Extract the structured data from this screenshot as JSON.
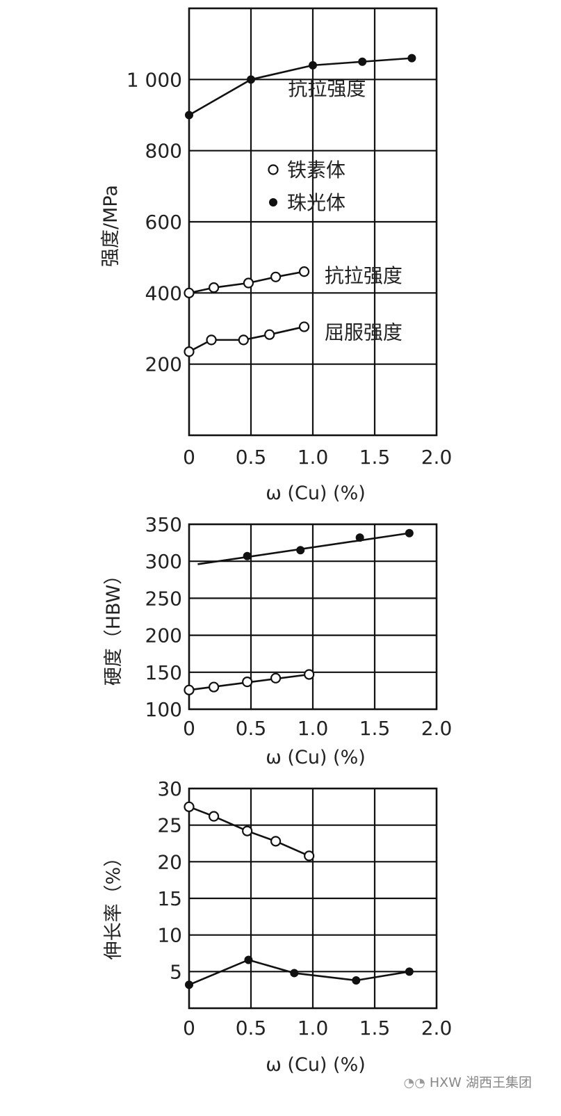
{
  "chart_data": [
    {
      "type": "line",
      "xlabel": "ω (Cu) (%)",
      "ylabel": "强度/MPa",
      "xlim": [
        0,
        2.0
      ],
      "ylim": [
        0,
        1200
      ],
      "x_ticks": [
        "0",
        "0.5",
        "1.0",
        "1.5",
        "2.0"
      ],
      "y_ticks": [
        {
          "value": 200,
          "label": "200"
        },
        {
          "value": 400,
          "label": "400"
        },
        {
          "value": 600,
          "label": "600"
        },
        {
          "value": 800,
          "label": "800"
        },
        {
          "value": 1000,
          "label": "1 000"
        }
      ],
      "grid": true,
      "legend": {
        "position": "center",
        "entries": [
          {
            "marker": "open-circle",
            "label": "铁素体"
          },
          {
            "marker": "filled-circle",
            "label": "珠光体"
          }
        ]
      },
      "series": [
        {
          "marker": "filled",
          "label": "抗拉强度",
          "x": [
            0,
            0.5,
            1.0,
            1.4,
            1.8
          ],
          "y": [
            900,
            1000,
            1040,
            1050,
            1060
          ]
        },
        {
          "marker": "open",
          "label": "抗拉强度",
          "x": [
            0,
            0.2,
            0.48,
            0.7,
            0.93
          ],
          "y": [
            400,
            415,
            428,
            445,
            460
          ]
        },
        {
          "marker": "open",
          "label": "屈服强度",
          "x": [
            0,
            0.18,
            0.44,
            0.65,
            0.93
          ],
          "y": [
            235,
            268,
            268,
            283,
            305
          ]
        }
      ]
    },
    {
      "type": "line",
      "xlabel": "ω (Cu) (%)",
      "ylabel": "硬度（HBW）",
      "xlim": [
        0,
        2.0
      ],
      "ylim": [
        100,
        350
      ],
      "x_ticks": [
        "0",
        "0.5",
        "1.0",
        "1.5",
        "2.0"
      ],
      "y_ticks": [
        "100",
        "150",
        "200",
        "250",
        "300",
        "350"
      ],
      "grid": true,
      "series": [
        {
          "marker": "filled",
          "x": [
            0.47,
            0.9,
            1.38,
            1.78
          ],
          "y": [
            307,
            315,
            332,
            338
          ],
          "trend": {
            "x": [
              0.07,
              1.78
            ],
            "y": [
              296,
              338
            ]
          }
        },
        {
          "marker": "open",
          "x": [
            0,
            0.2,
            0.47,
            0.7,
            0.97
          ],
          "y": [
            126,
            130,
            137,
            142,
            147
          ],
          "trend": {
            "x": [
              0,
              0.97
            ],
            "y": [
              126,
              147
            ]
          }
        }
      ]
    },
    {
      "type": "line",
      "xlabel": "ω (Cu) (%)",
      "ylabel": "伸长率（%）",
      "xlim": [
        0,
        2.0
      ],
      "ylim": [
        0,
        30
      ],
      "x_ticks": [
        "0",
        "0.5",
        "1.0",
        "1.5",
        "2.0"
      ],
      "y_ticks": [
        "5",
        "10",
        "15",
        "20",
        "25",
        "30"
      ],
      "grid": true,
      "series": [
        {
          "marker": "open",
          "x": [
            0,
            0.2,
            0.47,
            0.7,
            0.97
          ],
          "y": [
            27.5,
            26.2,
            24.2,
            22.8,
            20.8
          ]
        },
        {
          "marker": "filled",
          "x": [
            0,
            0.48,
            0.85,
            1.35,
            1.78
          ],
          "y": [
            3.2,
            6.6,
            4.8,
            3.8,
            5.0
          ]
        }
      ]
    }
  ],
  "watermark": {
    "icon": "wechat-icon",
    "text": "HXW 湖西王集团"
  }
}
